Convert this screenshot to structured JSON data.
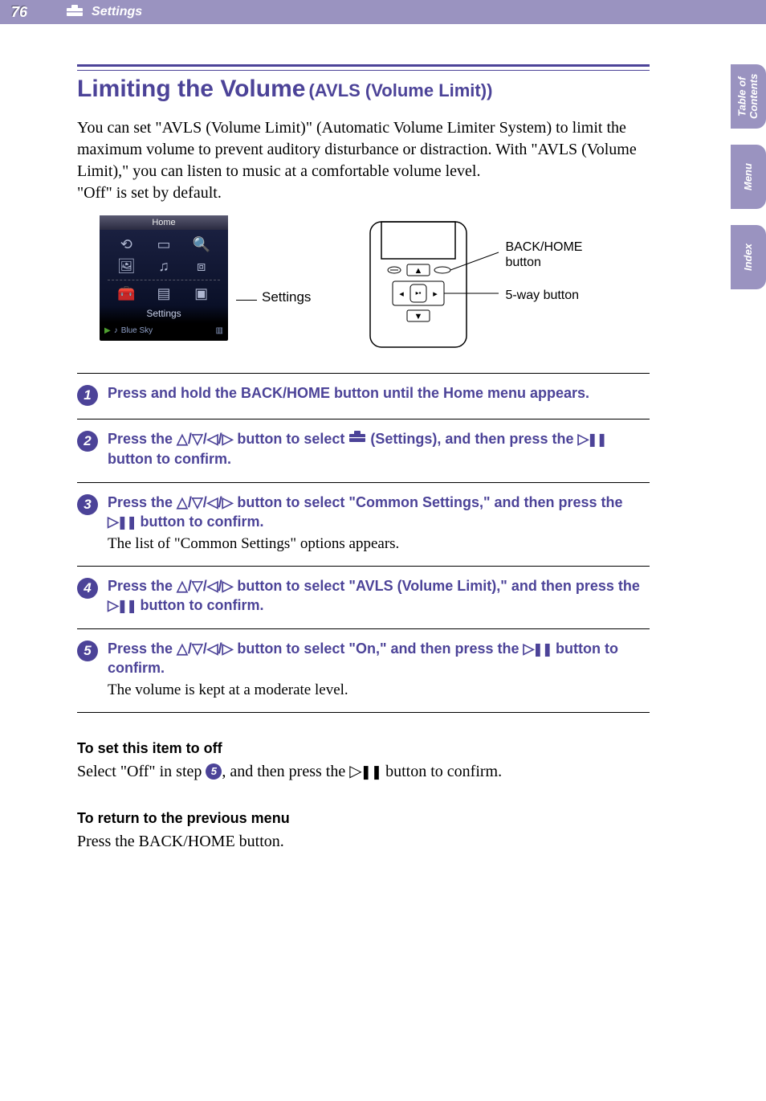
{
  "header": {
    "page_number": "76",
    "section": "Settings"
  },
  "side_tabs": [
    "Table of\nContents",
    "Menu",
    "Index"
  ],
  "title": {
    "main": "Limiting the Volume",
    "sub": "(AVLS (Volume Limit))"
  },
  "intro": "You can set \"AVLS (Volume Limit)\" (Automatic Volume Limiter System) to limit the maximum volume to prevent auditory disturbance or distraction. With \"AVLS (Volume Limit),\" you can listen to music at a comfortable volume level.\n\"Off\" is set by default.",
  "figure": {
    "screen_header": "Home",
    "screen_label": "Settings",
    "now_playing": "Blue Sky",
    "settings_callout": "Settings",
    "back_home_label": "BACK/HOME button",
    "fiveway_label": "5-way button"
  },
  "steps": [
    {
      "n": "1",
      "bold": "Press and hold the BACK/HOME button until the Home menu appears.",
      "plain": ""
    },
    {
      "n": "2",
      "bold_html": "Press the △/▽/◁/▷ button to select {TOOLBOX} (Settings), and then press the {PLAY} button to confirm.",
      "plain": ""
    },
    {
      "n": "3",
      "bold_html": "Press the △/▽/◁/▷ button to select \"Common Settings,\" and then press the {PLAY} button to confirm.",
      "plain": "The list of \"Common Settings\" options appears."
    },
    {
      "n": "4",
      "bold_html": "Press the △/▽/◁/▷ button to select \"AVLS (Volume Limit),\" and then press the {PLAY} button to confirm.",
      "plain": ""
    },
    {
      "n": "5",
      "bold_html": "Press the △/▽/◁/▷ button to select \"On,\" and then press the {PLAY} button to confirm.",
      "plain": "The volume is kept at a moderate level."
    }
  ],
  "notes": [
    {
      "head": "To set this item to off",
      "body_html": "Select \"Off\" in step {N5}, and then press the {PLAY} button to confirm."
    },
    {
      "head": "To return to the previous menu",
      "body": "Press the BACK/HOME button."
    }
  ],
  "colors": {
    "accent": "#4c4398",
    "header_bg": "#9a93c0"
  }
}
